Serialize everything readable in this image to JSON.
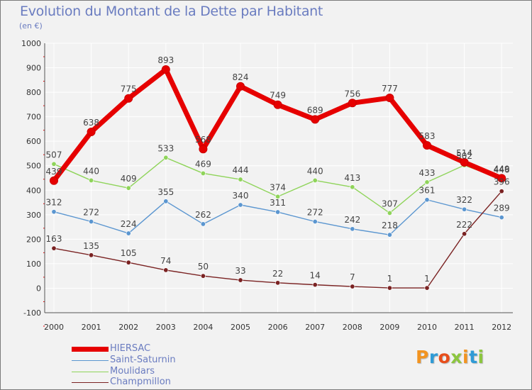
{
  "title": "Evolution du Montant de la Dette par Habitant",
  "subtitle": "(en €)",
  "logo": {
    "text": "Proxiti",
    "colors": [
      "#f29421",
      "#2f9bd6",
      "#e84e1b",
      "#8cc63f",
      "#f29421",
      "#2f9bd6",
      "#8cc63f"
    ]
  },
  "chart_data": {
    "type": "line",
    "x": [
      "2000",
      "2001",
      "2002",
      "2003",
      "2004",
      "2005",
      "2006",
      "2007",
      "2008",
      "2009",
      "2010",
      "2011",
      "2012"
    ],
    "y_ticks": [
      "-100",
      "0",
      "100",
      "200",
      "300",
      "400",
      "500",
      "600",
      "700",
      "800",
      "900",
      "1000"
    ],
    "ylim": [
      -100,
      1000
    ],
    "grid": true,
    "legend_position": "bottom-left",
    "series": [
      {
        "name": "HIERSAC",
        "color": "#e60000",
        "emphasis": true,
        "values": [
          439,
          638,
          775,
          893,
          568,
          824,
          749,
          689,
          756,
          777,
          583,
          514,
          449
        ],
        "labels": [
          "439",
          "638",
          "775",
          "893",
          "568",
          "824",
          "749",
          "689",
          "756",
          "777",
          "583",
          "514",
          "449"
        ]
      },
      {
        "name": "Saint-Saturnin",
        "color": "#5b96d0",
        "emphasis": false,
        "values": [
          312,
          272,
          224,
          355,
          262,
          340,
          311,
          272,
          242,
          218,
          361,
          322,
          289
        ],
        "labels": [
          "312",
          "272",
          "224",
          "355",
          "262",
          "340",
          "311",
          "272",
          "242",
          "218",
          "361",
          "322",
          "289"
        ]
      },
      {
        "name": "Moulidars",
        "color": "#8fd45a",
        "emphasis": false,
        "values": [
          507,
          440,
          409,
          533,
          469,
          444,
          374,
          440,
          413,
          307,
          433,
          502,
          446
        ],
        "labels": [
          "507",
          "440",
          "409",
          "533",
          "469",
          "444",
          "374",
          "440",
          "413",
          "307",
          "433",
          "502",
          "446"
        ]
      },
      {
        "name": "Champmillon",
        "color": "#7a2222",
        "emphasis": false,
        "values": [
          163,
          135,
          105,
          74,
          50,
          33,
          22,
          14,
          7,
          1,
          1,
          222,
          396
        ],
        "labels": [
          "163",
          "135",
          "105",
          "74",
          "50",
          "33",
          "22",
          "14",
          "7",
          "1",
          "1",
          "222",
          "396"
        ]
      }
    ]
  }
}
